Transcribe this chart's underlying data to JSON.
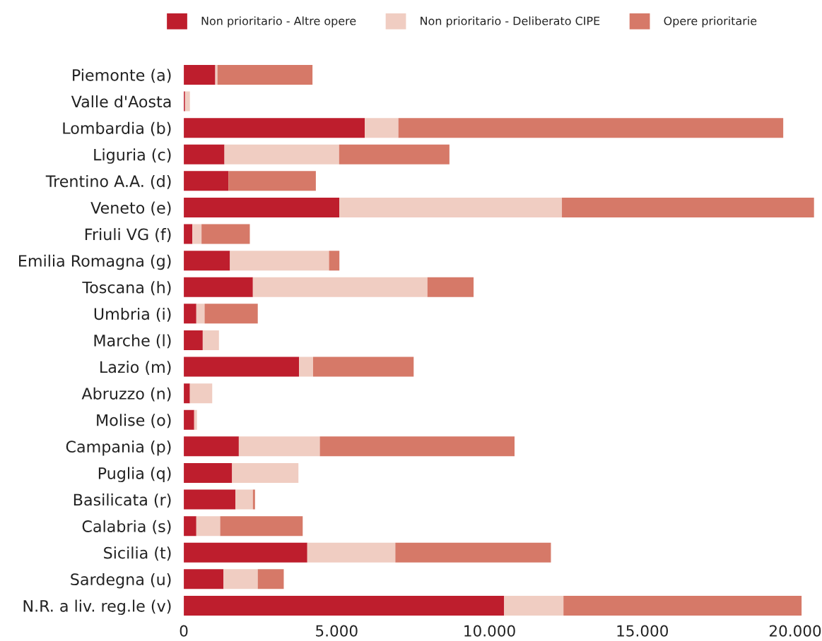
{
  "chart_data": {
    "type": "bar",
    "orientation": "horizontal",
    "stacked": true,
    "categories": [
      "Piemonte (a)",
      "Valle d'Aosta",
      "Lombardia (b)",
      "Liguria (c)",
      "Trentino A.A. (d)",
      "Veneto (e)",
      "Friuli VG (f)",
      "Emilia Romagna (g)",
      "Toscana (h)",
      "Umbria (i)",
      "Marche (l)",
      "Lazio (m)",
      "Abruzzo (n)",
      "Molise (o)",
      "Campania (p)",
      "Puglia (q)",
      "Basilicata (r)",
      "Calabria (s)",
      "Sicilia (t)",
      "Sardegna (u)",
      "N.R. a liv. reg.le (v)"
    ],
    "series": [
      {
        "name": "Non prioritario - Altre opere",
        "color": "#be1e2d",
        "values": [
          1030,
          40,
          5920,
          1330,
          1460,
          5090,
          280,
          1510,
          2260,
          410,
          620,
          3770,
          200,
          340,
          1800,
          1580,
          1690,
          410,
          4040,
          1300,
          10480
        ]
      },
      {
        "name": "Non prioritario - Deliberato CIPE",
        "color": "#f0cdc2",
        "values": [
          70,
          160,
          1100,
          3750,
          null,
          7280,
          300,
          3240,
          5710,
          270,
          530,
          460,
          730,
          90,
          2650,
          2170,
          570,
          780,
          2880,
          1120,
          1940
        ]
      },
      {
        "name": "Opere prioritarie",
        "color": "#d67968",
        "values": [
          3110,
          null,
          12590,
          3610,
          2860,
          8250,
          1580,
          340,
          1510,
          1740,
          null,
          3290,
          null,
          null,
          6370,
          null,
          70,
          2700,
          5090,
          850,
          7790
        ]
      }
    ],
    "xlim": [
      0,
      20620
    ],
    "xticks": [
      0,
      {
        "value": 5000,
        "label": "5.000"
      },
      {
        "value": 10000,
        "label": "10.000"
      },
      {
        "value": 15000,
        "label": "15.000"
      },
      {
        "value": 20000,
        "label": "20.000"
      }
    ],
    "legend": "top"
  }
}
